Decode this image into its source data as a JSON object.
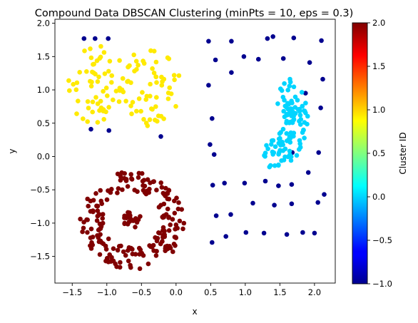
{
  "chart_data": {
    "type": "scatter",
    "title": "Compound Data DBSCAN Clustering (minPts = 10, eps = 0.3)",
    "xlabel": "x",
    "ylabel": "y",
    "xlim": [
      -1.75,
      2.3
    ],
    "ylim": [
      -1.9,
      2.06
    ],
    "xticks": [
      -1.5,
      -1.0,
      -0.5,
      0.0,
      0.5,
      1.0,
      1.5,
      2.0
    ],
    "xtick_labels": [
      "−1.5",
      "−1.0",
      "−0.5",
      "0.0",
      "0.5",
      "1.0",
      "1.5",
      "2.0"
    ],
    "yticks": [
      -1.5,
      -1.0,
      -0.5,
      0.0,
      0.5,
      1.0,
      1.5,
      2.0
    ],
    "ytick_labels": [
      "−1.5",
      "−1.0",
      "−0.5",
      "0.0",
      "0.5",
      "1.0",
      "1.5",
      "2.0"
    ],
    "grid": false,
    "colorbar": {
      "label": "Cluster ID",
      "colormap": "jet",
      "range": [
        -1,
        2
      ],
      "ticks": [
        -1.0,
        -0.5,
        0.0,
        0.5,
        1.0,
        1.5,
        2.0
      ],
      "tick_labels": [
        "−1.0",
        "−0.5",
        "0.0",
        "0.5",
        "1.0",
        "1.5",
        "2.0"
      ]
    },
    "cluster_colors": {
      "-1": "#00008f",
      "0": "#00d4ff",
      "1": "#ffea00",
      "2": "#800000"
    },
    "series": [
      {
        "cluster": -1,
        "points": [
          [
            -1.33,
            1.77
          ],
          [
            -1.17,
            1.77
          ],
          [
            -0.98,
            1.77
          ],
          [
            -1.23,
            0.41
          ],
          [
            -0.97,
            0.39
          ],
          [
            -0.22,
            0.3
          ],
          [
            0.47,
            1.73
          ],
          [
            0.8,
            1.73
          ],
          [
            1.32,
            1.77
          ],
          [
            1.4,
            1.8
          ],
          [
            1.7,
            1.78
          ],
          [
            2.1,
            1.74
          ],
          [
            0.57,
            1.45
          ],
          [
            0.98,
            1.5
          ],
          [
            1.19,
            1.46
          ],
          [
            1.55,
            1.47
          ],
          [
            1.93,
            1.41
          ],
          [
            0.8,
            1.26
          ],
          [
            2.12,
            1.16
          ],
          [
            0.47,
            1.07
          ],
          [
            1.87,
            0.95
          ],
          [
            2.09,
            0.73
          ],
          [
            0.52,
            0.57
          ],
          [
            0.49,
            0.18
          ],
          [
            0.55,
            0.03
          ],
          [
            1.68,
            0.06
          ],
          [
            2.06,
            0.06
          ],
          [
            0.53,
            -0.43
          ],
          [
            0.7,
            -0.4
          ],
          [
            0.99,
            -0.4
          ],
          [
            1.29,
            -0.37
          ],
          [
            1.48,
            -0.44
          ],
          [
            1.67,
            -0.42
          ],
          [
            1.91,
            -0.24
          ],
          [
            2.14,
            -0.57
          ],
          [
            1.11,
            -0.7
          ],
          [
            1.42,
            -0.73
          ],
          [
            1.67,
            -0.71
          ],
          [
            2.05,
            -0.69
          ],
          [
            0.58,
            -0.89
          ],
          [
            0.79,
            -0.87
          ],
          [
            0.72,
            -1.2
          ],
          [
            1.01,
            -1.14
          ],
          [
            1.27,
            -1.15
          ],
          [
            1.6,
            -1.17
          ],
          [
            1.83,
            -1.14
          ],
          [
            2.0,
            -1.15
          ],
          [
            0.52,
            -1.29
          ]
        ]
      },
      {
        "cluster": 0,
        "shape": "crescent",
        "center": [
          1.4,
          0.55
        ],
        "count": 120
      },
      {
        "cluster": 1,
        "shape": "two-blobs",
        "centers": [
          [
            -1.15,
            1.08
          ],
          [
            -0.36,
            1.05
          ]
        ],
        "count": 120
      },
      {
        "cluster": 2,
        "shape": "ring-with-core",
        "center": [
          -0.63,
          -0.95
        ],
        "count": 220
      }
    ]
  }
}
